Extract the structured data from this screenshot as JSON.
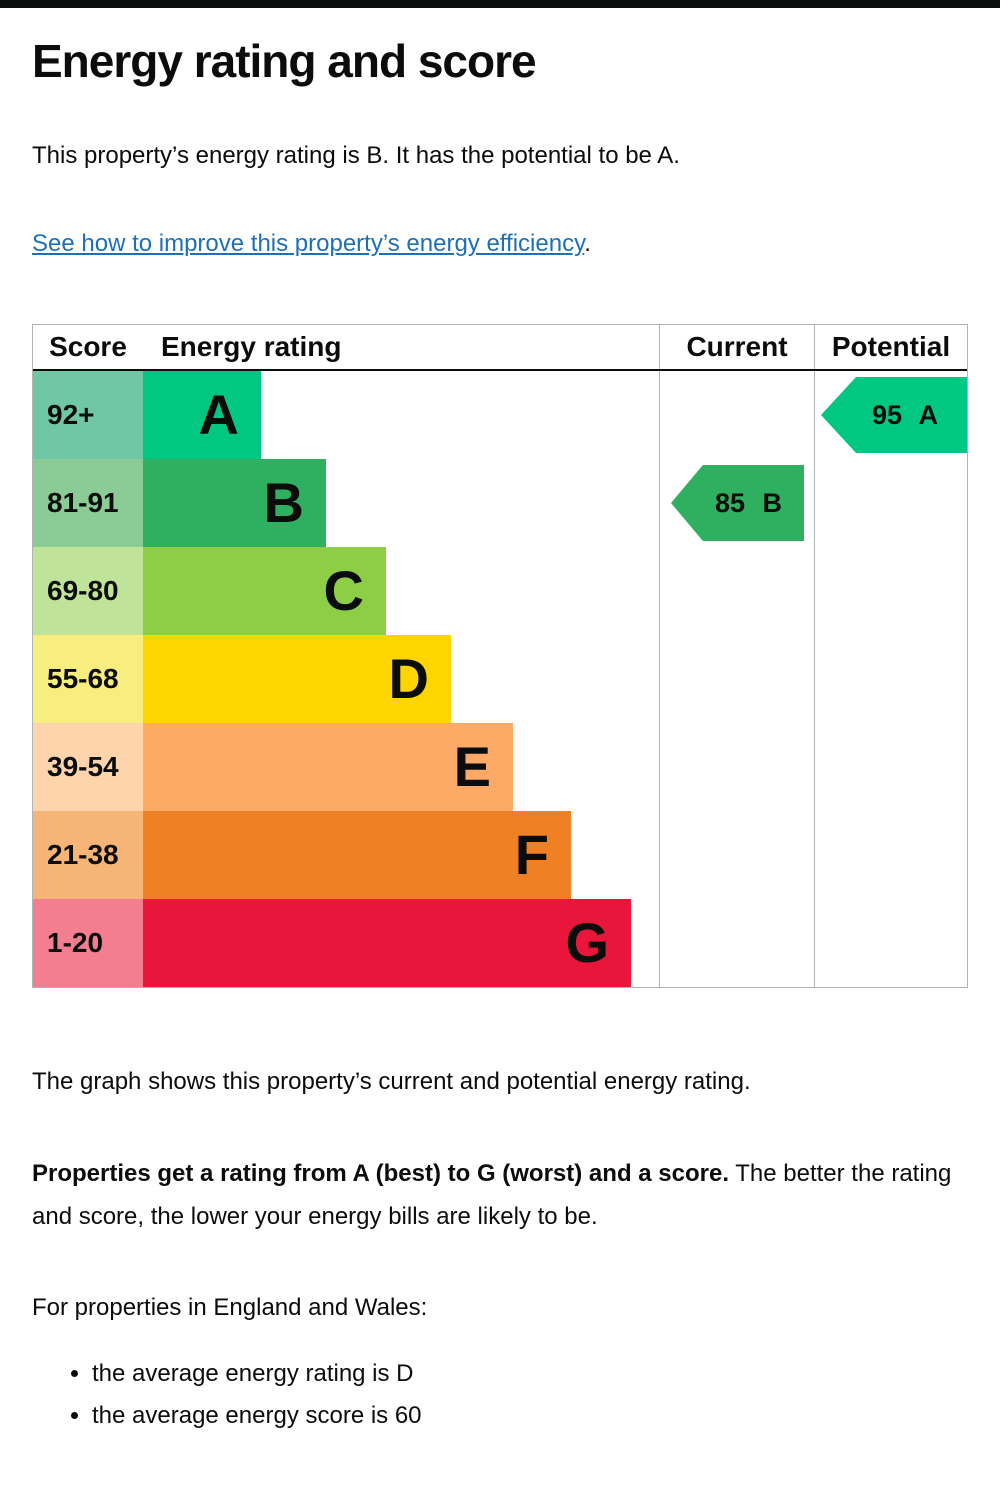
{
  "page": {
    "title": "Energy rating and score",
    "intro": "This property’s energy rating is B. It has the potential to be A.",
    "improve_link": "See how to improve this property’s energy efficiency",
    "improve_link_suffix": ".",
    "graph_caption": "The graph shows this property’s current and potential energy rating.",
    "explain_bold": "Properties get a rating from A (best) to G (worst) and a score.",
    "explain_rest": " The better the rating and score, the lower your energy bills are likely to be.",
    "region_heading": "For properties in England and Wales:",
    "bullets": [
      "the average energy rating is D",
      "the average energy score is 60"
    ]
  },
  "chart": {
    "headers": {
      "score": "Score",
      "rating": "Energy rating",
      "current": "Current",
      "potential": "Potential"
    },
    "bands": [
      {
        "score": "92+",
        "letter": "A",
        "bar_color": "#00c781",
        "score_color": "#6fc7a5"
      },
      {
        "score": "81-91",
        "letter": "B",
        "bar_color": "#2eb060",
        "score_color": "#8bcb96"
      },
      {
        "score": "69-80",
        "letter": "C",
        "bar_color": "#8dce46",
        "score_color": "#c0e39a"
      },
      {
        "score": "55-68",
        "letter": "D",
        "bar_color": "#ffd500",
        "score_color": "#f7ee7f"
      },
      {
        "score": "39-54",
        "letter": "E",
        "bar_color": "#fcaa65",
        "score_color": "#fdd4ab"
      },
      {
        "score": "21-38",
        "letter": "F",
        "bar_color": "#ef8023",
        "score_color": "#f6b477"
      },
      {
        "score": "1-20",
        "letter": "G",
        "bar_color": "#e9153b",
        "score_color": "#f27e8f"
      }
    ],
    "current": {
      "label": "85 B",
      "score": 85,
      "band": "B",
      "color": "#2eb060"
    },
    "potential": {
      "label": "95 A",
      "score": 95,
      "band": "A",
      "color": "#00c781"
    }
  },
  "chart_data": {
    "type": "bar",
    "title": "Energy rating and score",
    "columns": [
      "Score",
      "Energy rating",
      "Current",
      "Potential"
    ],
    "bands": [
      {
        "letter": "A",
        "range": "92+",
        "min": 92,
        "max": 100
      },
      {
        "letter": "B",
        "range": "81-91",
        "min": 81,
        "max": 91
      },
      {
        "letter": "C",
        "range": "69-80",
        "min": 69,
        "max": 80
      },
      {
        "letter": "D",
        "range": "55-68",
        "min": 55,
        "max": 68
      },
      {
        "letter": "E",
        "range": "39-54",
        "min": 39,
        "max": 54
      },
      {
        "letter": "F",
        "range": "21-38",
        "min": 21,
        "max": 38
      },
      {
        "letter": "G",
        "range": "1-20",
        "min": 1,
        "max": 20
      }
    ],
    "markers": [
      {
        "name": "Current",
        "score": 85,
        "band": "B"
      },
      {
        "name": "Potential",
        "score": 95,
        "band": "A"
      }
    ]
  },
  "colors": {
    "link": "#1d70b8",
    "text": "#0b0c0c",
    "table_border": "#b1b4b6"
  }
}
